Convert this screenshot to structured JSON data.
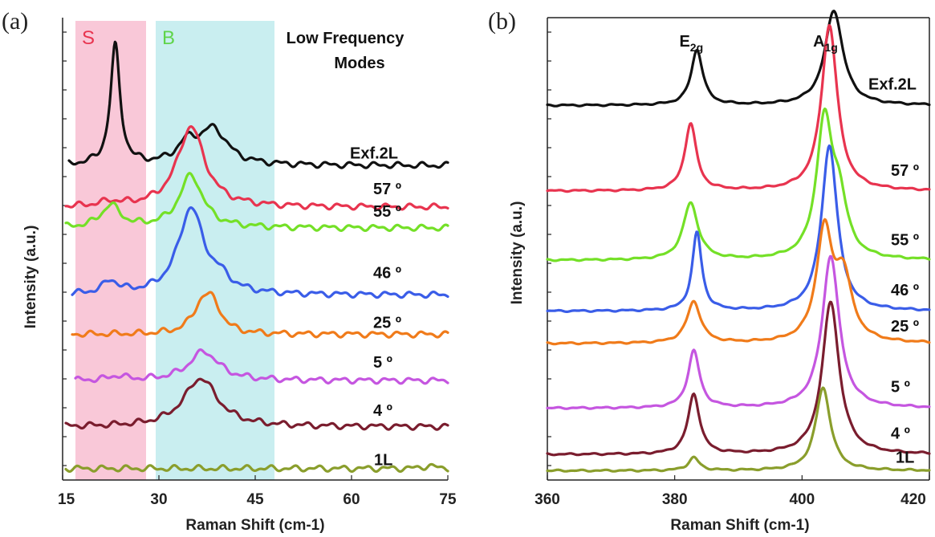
{
  "chart_data": [
    {
      "panel": "(a)",
      "type": "line",
      "title": "",
      "xlabel": "Raman Shift  (cm-1)",
      "ylabel": "Intensity (a.u.)",
      "xlim": [
        15,
        75
      ],
      "xticks": [
        15,
        30,
        45,
        60,
        75
      ],
      "annotation": [
        "Low Frequency",
        "Modes"
      ],
      "regions": [
        {
          "label": "S",
          "x_range": [
            17,
            28
          ],
          "color": "#f9c8d8",
          "label_color": "#e8344f"
        },
        {
          "label": "B",
          "x_range": [
            29.5,
            48
          ],
          "color": "#c9eef0",
          "label_color": "#5fd44a"
        }
      ],
      "series": [
        {
          "name": "Exf.2L",
          "label": "Exf.2L",
          "color": "#111111",
          "x_start": 16,
          "baseline": 0.68,
          "peaks": [
            {
              "x": 23.2,
              "height": 0.86,
              "width": 0.9
            },
            {
              "x": 34.5,
              "height": 0.14,
              "width": 2.0
            },
            {
              "x": 38.5,
              "height": 0.25,
              "width": 2.6
            }
          ]
        },
        {
          "name": "57",
          "label": "57 º",
          "color": "#e8344f",
          "x_start": 15.5,
          "baseline": 0.59,
          "peaks": [
            {
              "x": 35.0,
              "height": 0.58,
              "width": 2.6
            },
            {
              "x": 22.5,
              "height": 0.03,
              "width": 2.0
            }
          ]
        },
        {
          "name": "55",
          "label": "55 º",
          "color": "#74e027",
          "x_start": 15.5,
          "baseline": 0.545,
          "peaks": [
            {
              "x": 22.5,
              "height": 0.16,
              "width": 1.8
            },
            {
              "x": 35.0,
              "height": 0.38,
              "width": 2.2
            }
          ]
        },
        {
          "name": "46",
          "label": "46 º",
          "color": "#3a5de8",
          "x_start": 16.5,
          "baseline": 0.4,
          "peaks": [
            {
              "x": 22.5,
              "height": 0.09,
              "width": 1.5
            },
            {
              "x": 35.0,
              "height": 0.62,
              "width": 2.4
            },
            {
              "x": 39.5,
              "height": 0.08,
              "width": 2.0
            }
          ]
        },
        {
          "name": "25",
          "label": "25 º",
          "color": "#f07b1a",
          "x_start": 16.5,
          "baseline": 0.315,
          "peaks": [
            {
              "x": 36.8,
              "height": 0.2,
              "width": 1.8
            },
            {
              "x": 38.5,
              "height": 0.16,
              "width": 1.6
            }
          ]
        },
        {
          "name": "5",
          "label": "5 º",
          "color": "#c556e0",
          "x_start": 17,
          "baseline": 0.215,
          "peaks": [
            {
              "x": 37.0,
              "height": 0.21,
              "width": 2.8
            },
            {
              "x": 23.5,
              "height": 0.03,
              "width": 1.5
            }
          ]
        },
        {
          "name": "4",
          "label": "4 º",
          "color": "#7a1d2e",
          "x_start": 15.5,
          "baseline": 0.115,
          "peaks": [
            {
              "x": 36.5,
              "height": 0.35,
              "width": 3.2
            }
          ]
        },
        {
          "name": "1L",
          "label": "1L",
          "color": "#8a9e2c",
          "x_start": 15.5,
          "baseline": 0.025,
          "peaks": [
            {
              "x": 72.0,
              "height": 0.02,
              "width": 1.0
            }
          ]
        }
      ]
    },
    {
      "panel": "(b)",
      "type": "line",
      "title": "",
      "xlabel": "Raman Shift  (cm-1)",
      "ylabel": "Intensity (a.u.)",
      "xlim": [
        360,
        420
      ],
      "xticks": [
        360,
        380,
        400,
        420
      ],
      "peak_labels": [
        {
          "base": "E",
          "sub": "2g",
          "x": 383
        },
        {
          "base": "A",
          "sub": "1g",
          "x": 404
        }
      ],
      "series": [
        {
          "name": "Exf.2L",
          "label": "Exf.2L",
          "color": "#111111",
          "baseline": 0.81,
          "peaks": [
            {
              "x": 383.5,
              "height": 0.93,
              "width": 1.1
            },
            {
              "x": 405.0,
              "height": 1.6,
              "width": 1.7
            }
          ]
        },
        {
          "name": "57",
          "label": "57 º",
          "color": "#e8344f",
          "baseline": 0.625,
          "peaks": [
            {
              "x": 382.5,
              "height": 1.13,
              "width": 1.1
            },
            {
              "x": 404.3,
              "height": 2.79,
              "width": 1.5
            }
          ]
        },
        {
          "name": "55",
          "label": "55 º",
          "color": "#74e027",
          "baseline": 0.475,
          "peaks": [
            {
              "x": 382.5,
              "height": 0.96,
              "width": 1.4
            },
            {
              "x": 403.5,
              "height": 2.27,
              "width": 1.5
            },
            {
              "x": 405.8,
              "height": 0.88,
              "width": 1.5
            }
          ]
        },
        {
          "name": "46",
          "label": "46 º",
          "color": "#3a5de8",
          "baseline": 0.365,
          "peaks": [
            {
              "x": 383.5,
              "height": 1.32,
              "width": 0.9
            },
            {
              "x": 404.3,
              "height": 2.79,
              "width": 1.5
            }
          ]
        },
        {
          "name": "25",
          "label": "25 º",
          "color": "#f07b1a",
          "baseline": 0.295,
          "peaks": [
            {
              "x": 383.0,
              "height": 0.7,
              "width": 1.3
            },
            {
              "x": 403.5,
              "height": 1.84,
              "width": 1.5
            },
            {
              "x": 406.5,
              "height": 1.05,
              "width": 1.6
            }
          ]
        },
        {
          "name": "5",
          "label": "5 º",
          "color": "#c556e0",
          "baseline": 0.155,
          "peaks": [
            {
              "x": 383.0,
              "height": 0.96,
              "width": 1.1
            },
            {
              "x": 404.5,
              "height": 2.57,
              "width": 1.6
            }
          ]
        },
        {
          "name": "4",
          "label": "4 º",
          "color": "#7a1d2e",
          "baseline": 0.055,
          "peaks": [
            {
              "x": 383.0,
              "height": 1.01,
              "width": 1.1
            },
            {
              "x": 404.5,
              "height": 2.57,
              "width": 1.6
            }
          ]
        },
        {
          "name": "1L",
          "label": "1L",
          "color": "#8a9e2c",
          "baseline": 0.02,
          "peaks": [
            {
              "x": 383.0,
              "height": 0.22,
              "width": 1.0
            },
            {
              "x": 403.3,
              "height": 1.4,
              "width": 1.4
            }
          ]
        }
      ]
    }
  ]
}
